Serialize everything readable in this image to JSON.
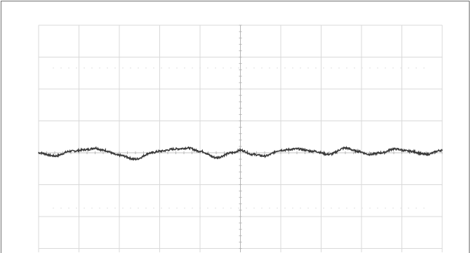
{
  "chart_data": {
    "type": "line",
    "grid": true,
    "xlim": [
      -5,
      5
    ],
    "ylim": [
      -4,
      4
    ],
    "x_divisions": 10,
    "y_divisions": 8,
    "series": [
      {
        "color": "#3a3a3a",
        "x": [
          -5.0,
          -4.6,
          -4.2,
          -3.8,
          -3.6,
          -3.4,
          -3.0,
          -2.6,
          -2.2,
          -2.0,
          -1.6,
          -1.3,
          -1.0,
          -0.6,
          -0.2,
          0.0,
          0.3,
          0.6,
          1.0,
          1.4,
          1.8,
          2.2,
          2.6,
          2.9,
          3.2,
          3.5,
          3.8,
          4.2,
          4.6,
          5.0
        ],
        "y": [
          0.0,
          -0.1,
          0.05,
          0.1,
          0.15,
          0.08,
          -0.08,
          -0.2,
          0.0,
          0.05,
          0.12,
          0.15,
          0.05,
          -0.15,
          0.0,
          0.08,
          -0.05,
          -0.1,
          0.08,
          0.12,
          0.05,
          -0.05,
          0.15,
          0.05,
          -0.05,
          0.0,
          0.12,
          0.05,
          -0.05,
          0.08
        ]
      }
    ]
  }
}
